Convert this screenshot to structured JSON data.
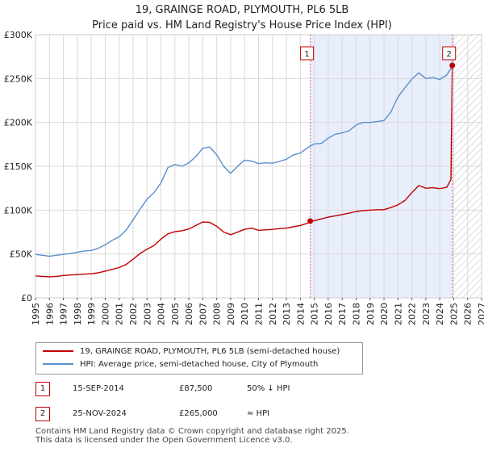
{
  "title_line1": "19, GRAINGE ROAD, PLYMOUTH, PL6 5LB",
  "title_line2": "Price paid vs. HM Land Registry's House Price Index (HPI)",
  "colors": {
    "property": "#c00000",
    "hpi": "#5b8fce",
    "shade": "#e8eefb",
    "grid": "#d9d9d9",
    "vline": "#e06080"
  },
  "chart_data": {
    "type": "line",
    "title": "19, GRAINGE ROAD, PLYMOUTH, PL6 5LB — Price paid vs. HM Land Registry's House Price Index (HPI)",
    "xlabel": "",
    "ylabel": "",
    "xlim": [
      1995,
      2027
    ],
    "ylim": [
      0,
      300000
    ],
    "x_ticks": [
      1995,
      1996,
      1997,
      1998,
      1999,
      2000,
      2001,
      2002,
      2003,
      2004,
      2005,
      2006,
      2007,
      2008,
      2009,
      2010,
      2011,
      2012,
      2013,
      2014,
      2015,
      2016,
      2017,
      2018,
      2019,
      2020,
      2021,
      2022,
      2023,
      2024,
      2025,
      2026,
      2027
    ],
    "y_ticks": [
      {
        "value": 0,
        "label": "£0"
      },
      {
        "value": 50000,
        "label": "£50K"
      },
      {
        "value": 100000,
        "label": "£100K"
      },
      {
        "value": 150000,
        "label": "£150K"
      },
      {
        "value": 200000,
        "label": "£200K"
      },
      {
        "value": 250000,
        "label": "£250K"
      },
      {
        "value": 300000,
        "label": "£300K"
      }
    ],
    "grid": true,
    "shaded_period": [
      2014.71,
      2024.9
    ],
    "forecast_hatched_from": 2024.9,
    "series": [
      {
        "name": "19, GRAINGE ROAD, PLYMOUTH, PL6 5LB (semi-detached house)",
        "x": [
          1995,
          1995.5,
          1996,
          1996.5,
          1997,
          1997.5,
          1998,
          1998.5,
          1999,
          1999.5,
          2000,
          2000.5,
          2001,
          2001.5,
          2002,
          2002.5,
          2003,
          2003.5,
          2004,
          2004.5,
          2005,
          2005.5,
          2006,
          2006.5,
          2007,
          2007.5,
          2008,
          2008.5,
          2009,
          2009.5,
          2010,
          2010.5,
          2011,
          2011.5,
          2012,
          2012.5,
          2013,
          2013.5,
          2014,
          2014.5,
          2014.71,
          2015,
          2015.5,
          2016,
          2016.5,
          2017,
          2017.5,
          2018,
          2018.5,
          2019,
          2019.5,
          2020,
          2020.5,
          2021,
          2021.5,
          2022,
          2022.5,
          2023,
          2023.5,
          2024,
          2024.5,
          2024.8,
          2024.9,
          2025
        ],
        "values": [
          25000,
          24500,
          24000,
          24500,
          25500,
          26000,
          26500,
          27000,
          27500,
          28500,
          30500,
          32500,
          34500,
          38000,
          44000,
          50500,
          55500,
          59500,
          67000,
          73000,
          75500,
          76500,
          78500,
          82500,
          86500,
          86000,
          81500,
          75000,
          72000,
          75000,
          78000,
          79500,
          77000,
          77500,
          78000,
          79000,
          79500,
          81000,
          82500,
          85000,
          87500,
          88000,
          90000,
          92000,
          93500,
          95000,
          96500,
          98500,
          99500,
          100000,
          100500,
          100500,
          103000,
          106000,
          111000,
          120000,
          128000,
          125000,
          125500,
          124500,
          126000,
          135000,
          265000,
          265000
        ]
      },
      {
        "name": "HPI: Average price, semi-detached house, City of Plymouth",
        "x": [
          1995,
          1995.5,
          1996,
          1996.5,
          1997,
          1997.5,
          1998,
          1998.5,
          1999,
          1999.5,
          2000,
          2000.5,
          2001,
          2001.5,
          2002,
          2002.5,
          2003,
          2003.5,
          2004,
          2004.5,
          2005,
          2005.5,
          2006,
          2006.5,
          2007,
          2007.5,
          2008,
          2008.5,
          2009,
          2009.5,
          2010,
          2010.5,
          2011,
          2011.5,
          2012,
          2012.5,
          2013,
          2013.5,
          2014,
          2014.5,
          2015,
          2015.5,
          2016,
          2016.5,
          2017,
          2017.5,
          2018,
          2018.5,
          2019,
          2019.5,
          2020,
          2020.5,
          2021,
          2021.5,
          2022,
          2022.5,
          2023,
          2023.5,
          2024,
          2024.5,
          2024.9,
          2025
        ],
        "values": [
          49500,
          48500,
          47500,
          48500,
          49500,
          50500,
          52000,
          53500,
          54000,
          56500,
          60500,
          65500,
          69500,
          77000,
          89000,
          101000,
          112500,
          120000,
          131000,
          148500,
          152000,
          150000,
          154000,
          161000,
          170500,
          172000,
          163000,
          150000,
          142000,
          150000,
          157000,
          156000,
          153000,
          154000,
          153500,
          155500,
          158000,
          163000,
          165000,
          171000,
          175500,
          176000,
          182000,
          186500,
          188000,
          190500,
          197000,
          200000,
          200000,
          201000,
          202000,
          212000,
          229000,
          239500,
          249500,
          256500,
          250000,
          251000,
          249000,
          254000,
          264000,
          268000
        ]
      }
    ],
    "sales": [
      {
        "id": "1",
        "date": "15-SEP-2014",
        "year": 2014.71,
        "price": 87500,
        "price_label": "£87,500",
        "relation": "50% ↓ HPI"
      },
      {
        "id": "2",
        "date": "25-NOV-2024",
        "year": 2024.9,
        "price": 265000,
        "price_label": "£265,000",
        "relation": "≈ HPI"
      }
    ]
  },
  "legend": {
    "property_label": "19, GRAINGE ROAD, PLYMOUTH, PL6 5LB (semi-detached house)",
    "hpi_label": "HPI: Average price, semi-detached house, City of Plymouth"
  },
  "footer": {
    "line1": "Contains HM Land Registry data © Crown copyright and database right 2025.",
    "line2": "This data is licensed under the Open Government Licence v3.0."
  }
}
